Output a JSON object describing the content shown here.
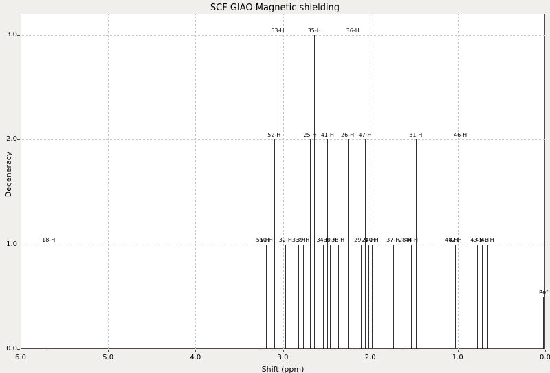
{
  "chart": {
    "title": "SCF GIAO Magnetic shielding",
    "xlabel": "Shift (ppm)",
    "ylabel": "Degeneracy"
  },
  "chart_data": {
    "type": "stem",
    "title": "SCF GIAO Magnetic shielding",
    "xlabel": "Shift (ppm)",
    "ylabel": "Degeneracy",
    "x_range": [
      6.0,
      0.0
    ],
    "y_range": [
      0.0,
      3.2
    ],
    "x_axis_reversed": true,
    "grid": true,
    "legend": "none",
    "x_tick_values": [
      6.0,
      5.0,
      4.0,
      3.0,
      2.0,
      1.0,
      0.0
    ],
    "x_tick_labels": [
      "6.0",
      "5.0",
      "4.0",
      "3.0",
      "2.0",
      "1.0",
      "0.0"
    ],
    "y_tick_values": [
      0.0,
      1.0,
      2.0,
      3.0
    ],
    "y_tick_labels": [
      "0.0",
      "1.0",
      "2.0",
      "3.0"
    ],
    "peaks": [
      {
        "label": "18-H",
        "shift": 5.68,
        "degeneracy": 1
      },
      {
        "label": "51-H",
        "shift": 3.23,
        "degeneracy": 1
      },
      {
        "label": "50-H",
        "shift": 3.19,
        "degeneracy": 1
      },
      {
        "label": "52-H",
        "shift": 3.1,
        "degeneracy": 2
      },
      {
        "label": "53-H",
        "shift": 3.06,
        "degeneracy": 3
      },
      {
        "label": "32-H",
        "shift": 2.97,
        "degeneracy": 1
      },
      {
        "label": "33-H",
        "shift": 2.82,
        "degeneracy": 1
      },
      {
        "label": "39-H",
        "shift": 2.77,
        "degeneracy": 1
      },
      {
        "label": "25-H",
        "shift": 2.69,
        "degeneracy": 2
      },
      {
        "label": "35-H",
        "shift": 2.64,
        "degeneracy": 3
      },
      {
        "label": "34-H",
        "shift": 2.54,
        "degeneracy": 1
      },
      {
        "label": "41-H",
        "shift": 2.49,
        "degeneracy": 2
      },
      {
        "label": "30-H",
        "shift": 2.46,
        "degeneracy": 1
      },
      {
        "label": "38-H",
        "shift": 2.37,
        "degeneracy": 1
      },
      {
        "label": "26-H",
        "shift": 2.26,
        "degeneracy": 2
      },
      {
        "label": "36-H",
        "shift": 2.2,
        "degeneracy": 3
      },
      {
        "label": "29-H",
        "shift": 2.11,
        "degeneracy": 1
      },
      {
        "label": "47-H",
        "shift": 2.06,
        "degeneracy": 2
      },
      {
        "label": "27-H",
        "shift": 2.02,
        "degeneracy": 1
      },
      {
        "label": "40-H",
        "shift": 1.98,
        "degeneracy": 1
      },
      {
        "label": "37-H",
        "shift": 1.74,
        "degeneracy": 1
      },
      {
        "label": "28-H",
        "shift": 1.6,
        "degeneracy": 1
      },
      {
        "label": "44-H",
        "shift": 1.53,
        "degeneracy": 1
      },
      {
        "label": "31-H",
        "shift": 1.48,
        "degeneracy": 2
      },
      {
        "label": "48-H",
        "shift": 1.07,
        "degeneracy": 1
      },
      {
        "label": "42-H",
        "shift": 1.03,
        "degeneracy": 1
      },
      {
        "label": "46-H",
        "shift": 0.97,
        "degeneracy": 2
      },
      {
        "label": "43-H",
        "shift": 0.78,
        "degeneracy": 1
      },
      {
        "label": "45-H",
        "shift": 0.72,
        "degeneracy": 1
      },
      {
        "label": "49-H",
        "shift": 0.66,
        "degeneracy": 1
      },
      {
        "label": "Ref",
        "shift": 0.02,
        "degeneracy": 0.5
      }
    ]
  },
  "colors": {
    "background": "#f1efec",
    "plot_background": "#ffffff",
    "grid": "#c6c6c6",
    "line": "#303030",
    "border": "#4a4a4a",
    "text": "#000000"
  }
}
